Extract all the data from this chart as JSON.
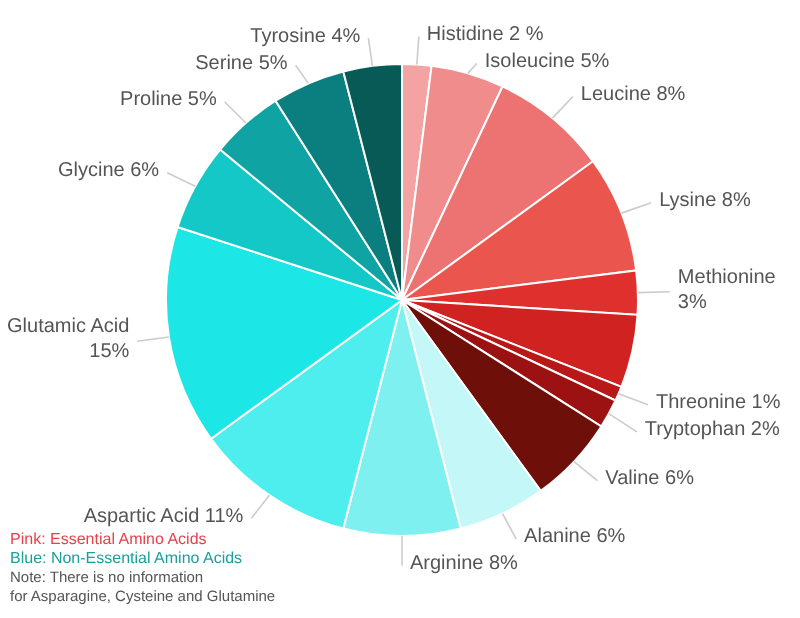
{
  "chart_data": {
    "type": "pie",
    "categories": [
      "Histidine",
      "Isoleucine",
      "Leucine",
      "Lysine",
      "Methionine",
      null,
      "Threonine",
      "Tryptophan",
      "Valine",
      "Alanine",
      "Arginine",
      "Aspartic Acid",
      "Glutamic Acid",
      "Glycine",
      "Proline",
      "Serine",
      "Tyrosine"
    ],
    "values": [
      2,
      5,
      8,
      8,
      3,
      5,
      1,
      2,
      6,
      6,
      8,
      11,
      15,
      6,
      5,
      5,
      4
    ],
    "value_labels": [
      "2 %",
      "5%",
      "8%",
      "8%",
      "3%",
      null,
      "1%",
      "2%",
      "6%",
      "6%",
      "8%",
      "11%",
      "15%",
      "6%",
      "5%",
      "5%",
      "4%"
    ],
    "colors": [
      "#f4a3a3",
      "#f18c8c",
      "#ed7373",
      "#ea564e",
      "#e0302e",
      "#d02220",
      "#b81818",
      "#9c1212",
      "#6e0f0a",
      "#c4f7f7",
      "#7ef0f0",
      "#4eeeee",
      "#1de6e6",
      "#14c8c8",
      "#0fa3a3",
      "#0b7f7f",
      "#075a55"
    ],
    "annotations": [
      "Pink: Essential Amino Acids",
      "Blue: Non-Essential Amino Acids",
      "Note: There is no information for Asparagine, Cysteine and Glutamine"
    ]
  }
}
